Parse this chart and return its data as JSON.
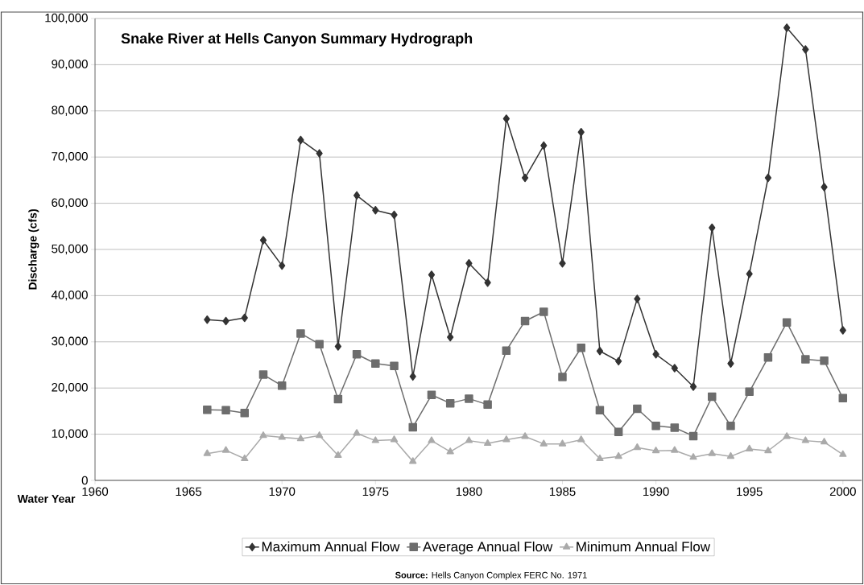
{
  "chart_data": {
    "type": "line",
    "title": "Snake River at Hells Canyon Summary Hydrograph",
    "xlabel": "Water Year",
    "ylabel": "Discharge (cfs)",
    "x": [
      1966,
      1967,
      1968,
      1969,
      1970,
      1971,
      1972,
      1973,
      1974,
      1975,
      1976,
      1977,
      1978,
      1979,
      1980,
      1981,
      1982,
      1983,
      1984,
      1985,
      1986,
      1987,
      1988,
      1989,
      1990,
      1991,
      1992,
      1993,
      1994,
      1995,
      1996,
      1997,
      1998,
      1999,
      2000
    ],
    "series": [
      {
        "name": "Maximum Annual Flow",
        "color": "#333333",
        "marker": "diamond",
        "values": [
          34800,
          34500,
          35200,
          52000,
          46500,
          73700,
          70800,
          29000,
          61700,
          58500,
          57500,
          22500,
          44500,
          31000,
          47000,
          42800,
          78300,
          65500,
          72500,
          47000,
          75400,
          28000,
          25800,
          39300,
          27300,
          24300,
          20300,
          54700,
          25300,
          44700,
          65500,
          98000,
          93300,
          63500,
          32500
        ]
      },
      {
        "name": "Average Annual Flow",
        "color": "#6d6d6d",
        "marker": "square",
        "values": [
          15300,
          15200,
          14600,
          22900,
          20500,
          31800,
          29500,
          17600,
          27300,
          25300,
          24800,
          11500,
          18500,
          16700,
          17700,
          16400,
          28100,
          34500,
          36500,
          22400,
          28700,
          15200,
          10500,
          15500,
          11800,
          11400,
          9600,
          18100,
          11800,
          19200,
          26600,
          34200,
          26200,
          25900,
          17800
        ]
      },
      {
        "name": "Minimum Annual Flow",
        "color": "#aaaaaa",
        "marker": "triangle",
        "values": [
          5800,
          6500,
          4700,
          9700,
          9300,
          9000,
          9700,
          5400,
          10200,
          8600,
          8800,
          4100,
          8600,
          6200,
          8600,
          8000,
          8800,
          9500,
          7900,
          7900,
          8800,
          4700,
          5200,
          7100,
          6400,
          6500,
          5000,
          5800,
          5200,
          6800,
          6400,
          9500,
          8600,
          8300,
          5600
        ]
      }
    ],
    "xlim": [
      1960,
      2001
    ],
    "xticks": [
      1960,
      1965,
      1970,
      1975,
      1980,
      1985,
      1990,
      1995,
      2000
    ],
    "ylim": [
      0,
      100000
    ],
    "yticks": [
      {
        "value": 0,
        "label": "0"
      },
      {
        "value": 10000,
        "label": "10,000"
      },
      {
        "value": 20000,
        "label": "20,000"
      },
      {
        "value": 30000,
        "label": "30,000"
      },
      {
        "value": 40000,
        "label": "40,000"
      },
      {
        "value": 50000,
        "label": "50,000"
      },
      {
        "value": 60000,
        "label": "60,000"
      },
      {
        "value": 70000,
        "label": "70,000"
      },
      {
        "value": 80000,
        "label": "80,000"
      },
      {
        "value": 90000,
        "label": "90,000"
      },
      {
        "value": 100000,
        "label": "100,000"
      }
    ],
    "grid": "y",
    "legend": "bottom",
    "line_style": "solid",
    "annotations": [
      "**Source:** Hells Canyon Complex FERC No. 1971"
    ]
  }
}
